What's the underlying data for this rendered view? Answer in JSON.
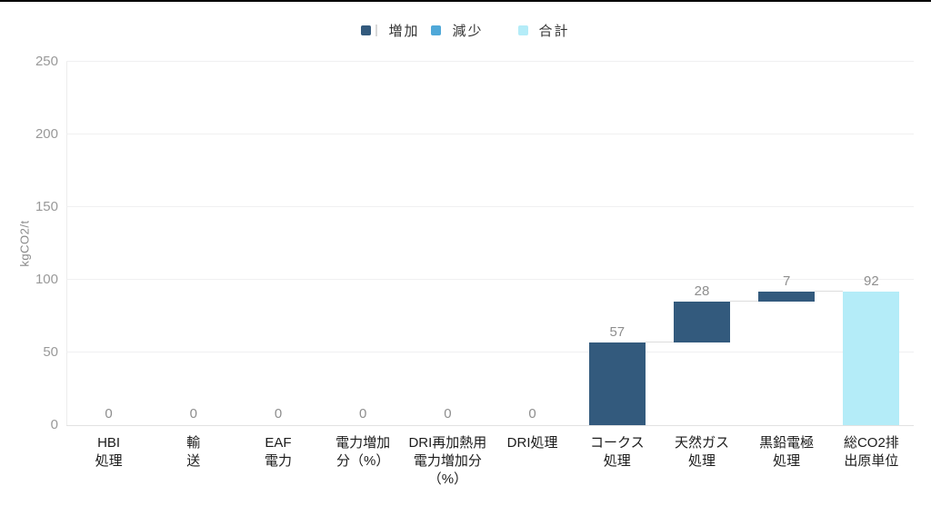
{
  "legend": {
    "items": [
      {
        "id": "increase",
        "label": "増加",
        "color": "#335A7D"
      },
      {
        "id": "decrease",
        "label": "減少",
        "color": "#4FA8D8"
      },
      {
        "id": "total",
        "label": "合計",
        "color": "#B4ECF8"
      }
    ]
  },
  "chart_data": {
    "type": "bar",
    "subtype": "waterfall",
    "title": "",
    "xlabel": "",
    "ylabel": "kgCO2/t",
    "ylim": [
      0,
      250
    ],
    "yticks": [
      0,
      50,
      100,
      150,
      200,
      250
    ],
    "grid": true,
    "legend_position": "top-center",
    "legend_entries": [
      "増加",
      "減少",
      "合計"
    ],
    "colors": {
      "increase": "#335A7D",
      "decrease": "#4FA8D8",
      "total": "#B4ECF8"
    },
    "categories": [
      "HBI処理",
      "輸送",
      "EAF電力",
      "電力増加分（%）",
      "DRI再加熱用電力増加分（%）",
      "DRI処理",
      "コークス処理",
      "天然ガス処理",
      "黒鉛電極処理",
      "総CO2排出原単位"
    ],
    "bars": [
      {
        "category": "HBI処理",
        "display_lines": "HBI\n処理",
        "value": 0,
        "start": 0,
        "end": 0,
        "role": "increase",
        "data_label": "0"
      },
      {
        "category": "輸送",
        "display_lines": "輸\n送",
        "value": 0,
        "start": 0,
        "end": 0,
        "role": "increase",
        "data_label": "0"
      },
      {
        "category": "EAF電力",
        "display_lines": "EAF\n電力",
        "value": 0,
        "start": 0,
        "end": 0,
        "role": "increase",
        "data_label": "0"
      },
      {
        "category": "電力増加分（%）",
        "display_lines": "電力増加\n分（%）",
        "value": 0,
        "start": 0,
        "end": 0,
        "role": "increase",
        "data_label": "0"
      },
      {
        "category": "DRI再加熱用電力増加分（%）",
        "display_lines": "DRI再加熱用\n電力増加分\n（%）",
        "value": 0,
        "start": 0,
        "end": 0,
        "role": "increase",
        "data_label": "0"
      },
      {
        "category": "DRI処理",
        "display_lines": "DRI処理",
        "value": 0,
        "start": 0,
        "end": 0,
        "role": "increase",
        "data_label": "0"
      },
      {
        "category": "コークス処理",
        "display_lines": "コークス\n処理",
        "value": 57,
        "start": 0,
        "end": 57,
        "role": "increase",
        "data_label": "57"
      },
      {
        "category": "天然ガス処理",
        "display_lines": "天然ガス\n処理",
        "value": 28,
        "start": 57,
        "end": 85,
        "role": "increase",
        "data_label": "28"
      },
      {
        "category": "黒鉛電極処理",
        "display_lines": "黒鉛電極\n処理",
        "value": 7,
        "start": 85,
        "end": 92,
        "role": "increase",
        "data_label": "7"
      },
      {
        "category": "総CO2排出原単位",
        "display_lines": "総CO2排\n出原単位",
        "value": 92,
        "start": 0,
        "end": 92,
        "role": "total",
        "data_label": "92"
      }
    ]
  }
}
